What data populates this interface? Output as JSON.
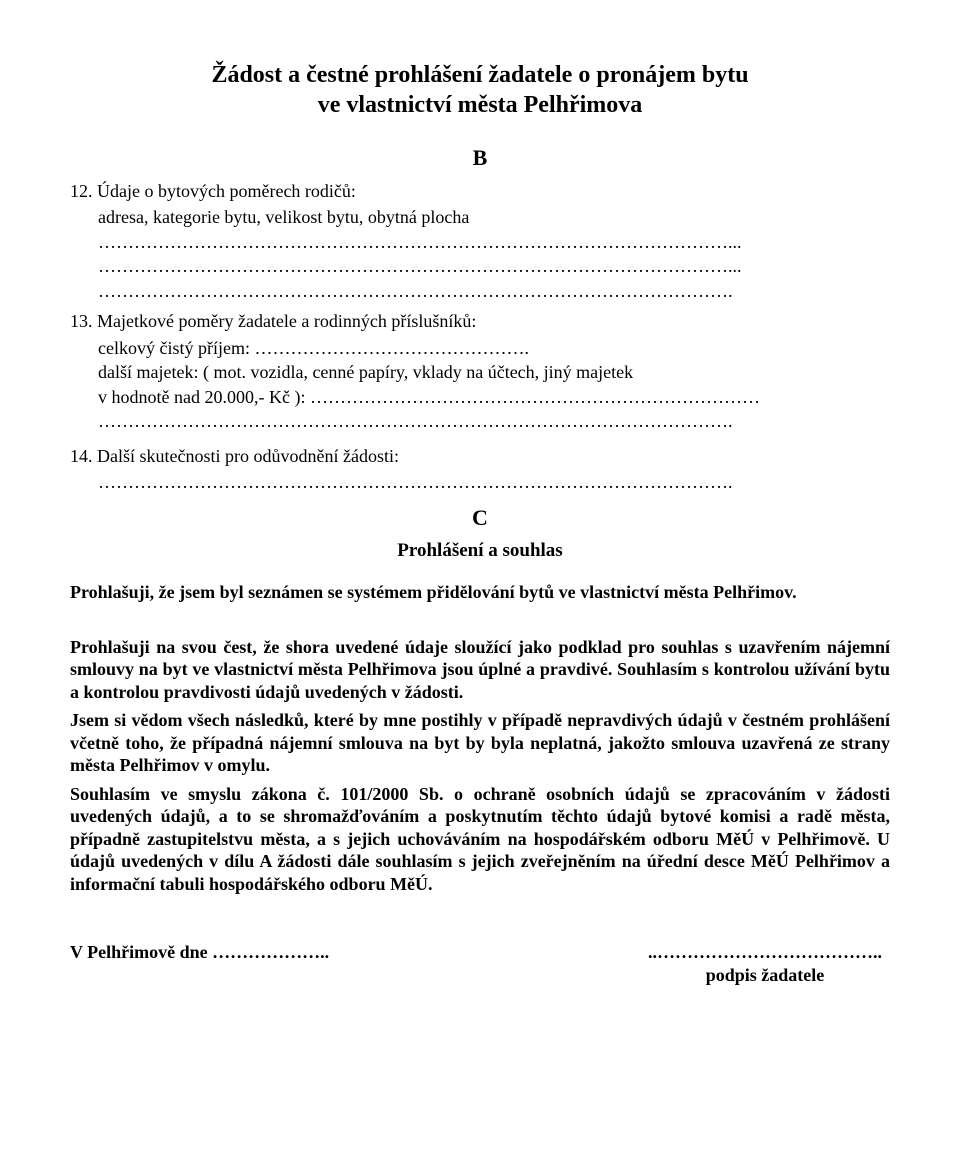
{
  "title_line1": "Žádost a čestné prohlášení žadatele o pronájem bytu",
  "title_line2": "ve vlastnictví města Pelhřimova",
  "letter_b": "B",
  "item12": {
    "num": "12.",
    "label": "Údaje o bytových poměrech rodičů:",
    "line2": "adresa, kategorie bytu, velikost bytu, obytná plocha",
    "dots1": "……………………………………………………………………………………………...",
    "dots2": "……………………………………………………………………………………………...",
    "dots3": "…………………………………………………………………………………………….",
    "dots_pad": " "
  },
  "item13": {
    "num": "13.",
    "label": "Majetkové poměry žadatele a rodinných příslušníků:",
    "line2a": "celkový čistý příjem:",
    "line2b": "……………………………………….",
    "line3": "další majetek: ( mot. vozidla, cenné papíry, vklady na účtech, jiný majetek",
    "line4a": "v hodnotě nad 20.000,- Kč ):",
    "line4b": "…………………………………………………………………",
    "dots5": "……………………………………………………………………………………………."
  },
  "item14": {
    "num": "14.",
    "label": "Další skutečnosti pro odůvodnění žádosti:",
    "dots1": "……………………………………………………………………………………………."
  },
  "letter_c": "C",
  "subtitle_c": "Prohlášení a souhlas",
  "para1": "Prohlašuji, že jsem byl seznámen se systémem přidělování bytů ve vlastnictví města Pelhřimov.",
  "para2": "Prohlašuji na svou čest, že shora uvedené údaje sloužící jako podklad pro souhlas s uzavřením nájemní smlouvy na byt  ve vlastnictví  města Pelhřimova jsou úplné a pravdivé. Souhlasím s kontrolou užívání bytu a kontrolou pravdivosti údajů uvedených v žádosti.",
  "para3": "Jsem si vědom všech následků, které by mne postihly v případě nepravdivých údajů v čestném prohlášení včetně toho, že případná nájemní smlouva na byt by byla neplatná, jakožto smlouva uzavřená ze strany města Pelhřimov v omylu.",
  "para4": "Souhlasím ve smyslu zákona č. 101/2000 Sb. o ochraně osobních údajů se zpracováním v žádosti uvedených údajů, a to se shromažďováním a poskytnutím těchto údajů bytové komisi a radě města, případně zastupitelstvu města, a s jejich uchováváním na hospodářském odboru MěÚ v Pelhřimově. U údajů uvedených v dílu A žádosti dále souhlasím s jejich zveřejněním na úřední desce MěÚ Pelhřimov a informační tabuli hospodářského odboru MěÚ.",
  "sig_left_a": "V Pelhřimově dne ",
  "sig_left_b": "………………..",
  "sig_right_a": "..………………………………..",
  "sig_right_b": "podpis žadatele"
}
